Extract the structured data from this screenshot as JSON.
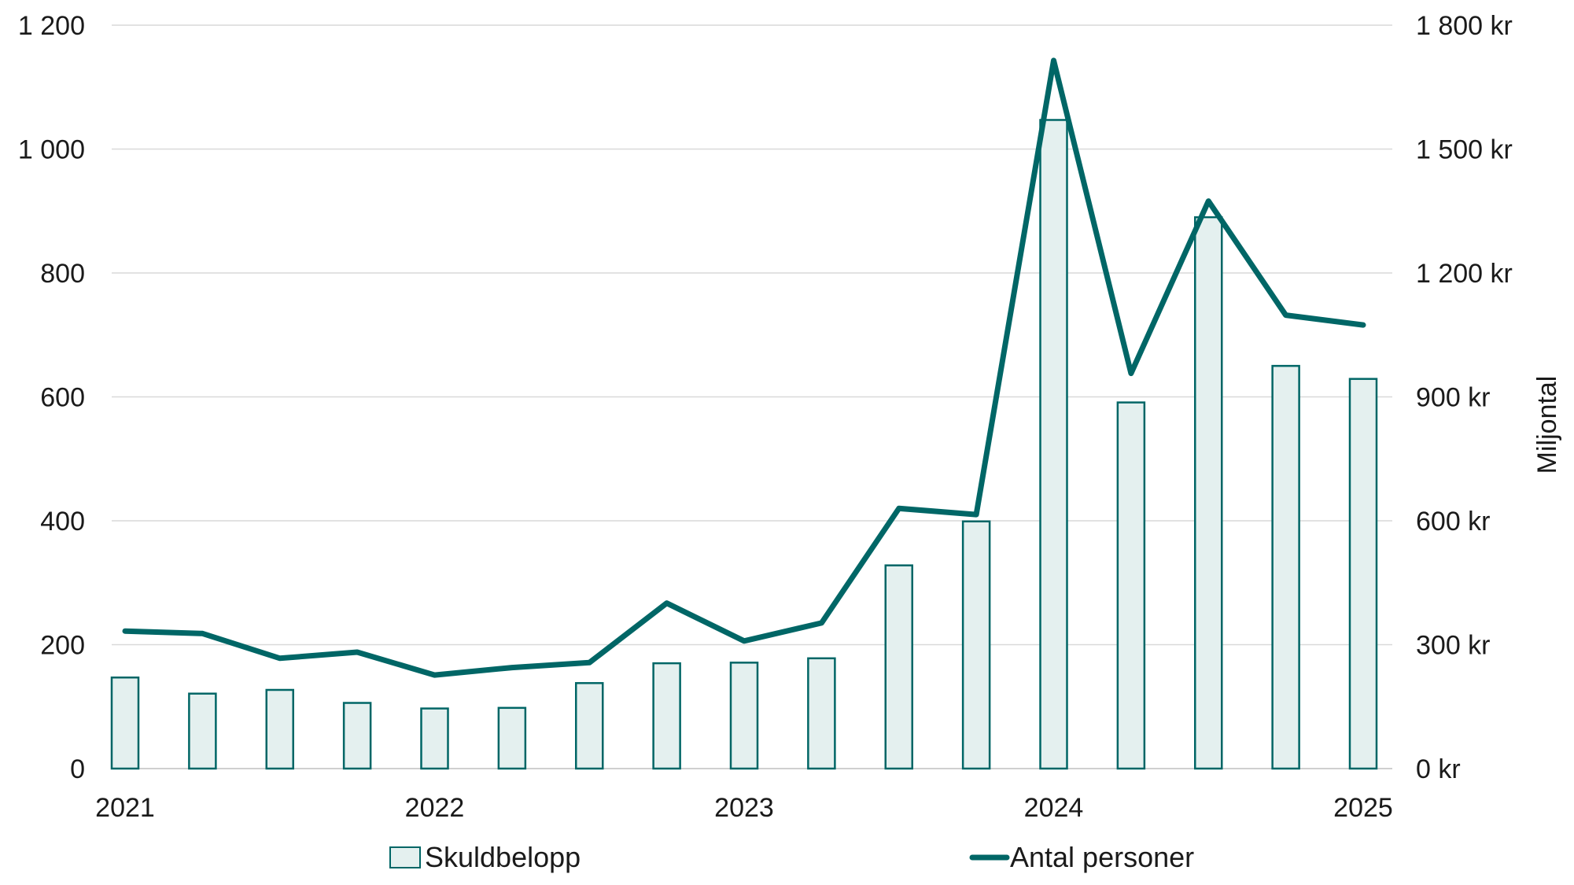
{
  "chart_data": {
    "type": "bar",
    "x_tick_labels": [
      "2021",
      "2022",
      "2023",
      "2024",
      "2025"
    ],
    "left_axis": {
      "ylim": [
        0,
        1200
      ],
      "ticks": [
        0,
        200,
        400,
        600,
        800,
        1000,
        1200
      ],
      "tick_labels": [
        "0",
        "200",
        "400",
        "600",
        "800",
        "1 000",
        "1 200"
      ]
    },
    "right_axis": {
      "label": "Miljontal",
      "ylim": [
        0,
        1800
      ],
      "tick_labels": [
        "0 kr",
        "300 kr",
        "600 kr",
        "900 kr",
        "1 200 kr",
        "1 500 kr",
        "1 800 kr"
      ]
    },
    "grid": true,
    "legend_position": "bottom",
    "series": [
      {
        "name": "Skuldbelopp",
        "type": "bar",
        "axis": "left",
        "color": "#006666",
        "fill": "#e4f0ef",
        "values": [
          147,
          121,
          127,
          106,
          97,
          98,
          138,
          170,
          171,
          178,
          328,
          399,
          1047,
          591,
          890,
          650,
          629
        ]
      },
      {
        "name": "Antal personer",
        "type": "line",
        "axis": "left",
        "color": "#006666",
        "values": [
          222,
          218,
          178,
          188,
          151,
          163,
          171,
          267,
          206,
          235,
          420,
          410,
          1143,
          638,
          916,
          732,
          716
        ]
      }
    ]
  }
}
